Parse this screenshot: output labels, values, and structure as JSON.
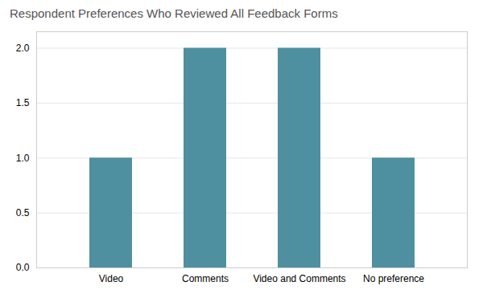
{
  "chart_data": {
    "type": "bar",
    "title": "Respondent Preferences Who Reviewed All Feedback Forms",
    "categories": [
      "Video",
      "Comments",
      "Video and Comments",
      "No preference"
    ],
    "values": [
      1,
      2,
      2,
      1
    ],
    "color": "#4e8fa0",
    "ylim": [
      0,
      2.15
    ],
    "yticks": [
      {
        "value": 0.0,
        "label": "0.0"
      },
      0.5,
      {
        "value": 1.0,
        "label": "1.0"
      },
      1.5,
      {
        "value": 2.0,
        "label": "2.0"
      }
    ],
    "grid": true
  }
}
